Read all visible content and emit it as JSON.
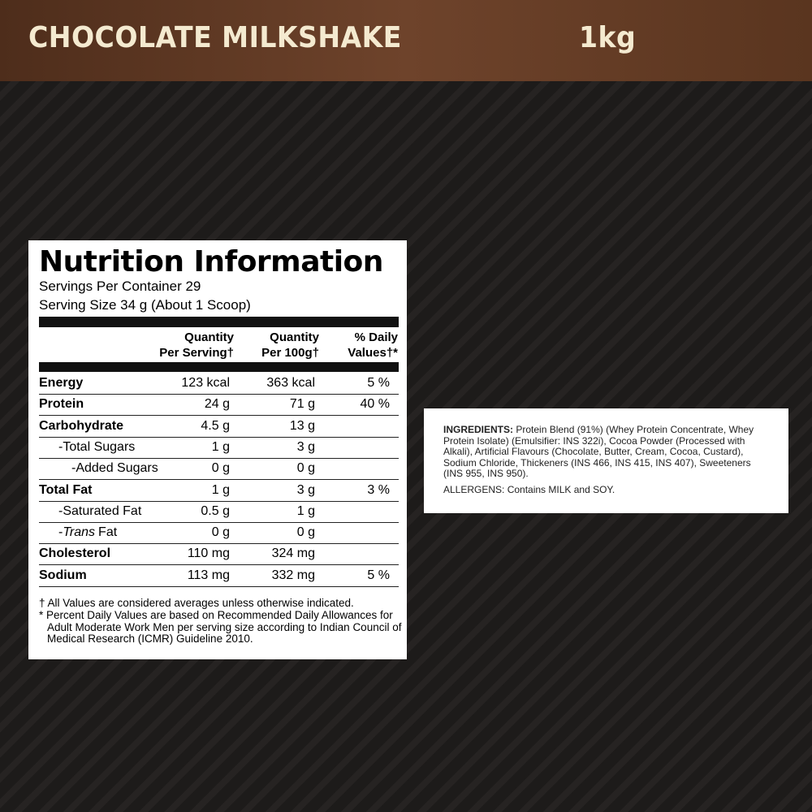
{
  "header": {
    "title": "CHOCOLATE MILKSHAKE",
    "size": "1kg"
  },
  "nutrition": {
    "title": "Nutrition Information",
    "servings": "Servings Per Container 29",
    "serving_size": "Serving Size 34 g (About 1 Scoop)",
    "columns": [
      [
        "Quantity",
        "Per Serving†"
      ],
      [
        "Quantity",
        "Per 100g†"
      ],
      [
        "% Daily",
        "Values†*"
      ]
    ],
    "rows": [
      {
        "label": "Energy",
        "values": [
          "123 kcal",
          "363 kcal",
          "5 %"
        ]
      },
      {
        "label": "Protein",
        "values": [
          "24 g",
          "71 g",
          "40 %"
        ]
      },
      {
        "label": "Carbohydrate",
        "values": [
          "4.5 g",
          "13 g",
          null
        ]
      },
      {
        "label": "-Total Sugars",
        "values": [
          "1 g",
          "3 g",
          null
        ]
      },
      {
        "label": "-Added Sugars",
        "values": [
          "0 g",
          "0 g",
          null
        ]
      },
      {
        "label": "Total Fat",
        "values": [
          "1 g",
          "3 g",
          "3 %"
        ]
      },
      {
        "label": "-Saturated Fat",
        "values": [
          "0.5 g",
          "1 g",
          null
        ]
      },
      {
        "label": [
          "-",
          "Trans",
          "Fat"
        ],
        "values": [
          "0 g",
          "0 g",
          null
        ]
      },
      {
        "label": "Cholesterol",
        "values": [
          "110 mg",
          "324 mg",
          null
        ]
      },
      {
        "label": "Sodium",
        "values": [
          "113 mg",
          "332 mg",
          "5 %"
        ]
      }
    ],
    "footnotes": [
      "† All Values are considered averages unless otherwise indicated.",
      "* Percent Daily Values are based on Recommended Daily Allowances for Adult Moderate Work Men per serving size according to Indian Council of Medical Research (ICMR) Guideline 2010."
    ]
  },
  "ingredients": {
    "heading": "INGREDIENTS:",
    "text": "Protein Blend (91%) (Whey Protein Concentrate, Whey Protein Isolate) (Emulsifier: INS 322i), Cocoa Powder (Processed with Alkali), Artificial Flavours (Chocolate, Butter, Cream, Cocoa, Custard), Sodium Chloride, Thickeners (INS 466, INS 415, INS 407), Sweeteners (INS 955, INS 950).",
    "allergens": "ALLERGENS: Contains MILK and SOY."
  }
}
